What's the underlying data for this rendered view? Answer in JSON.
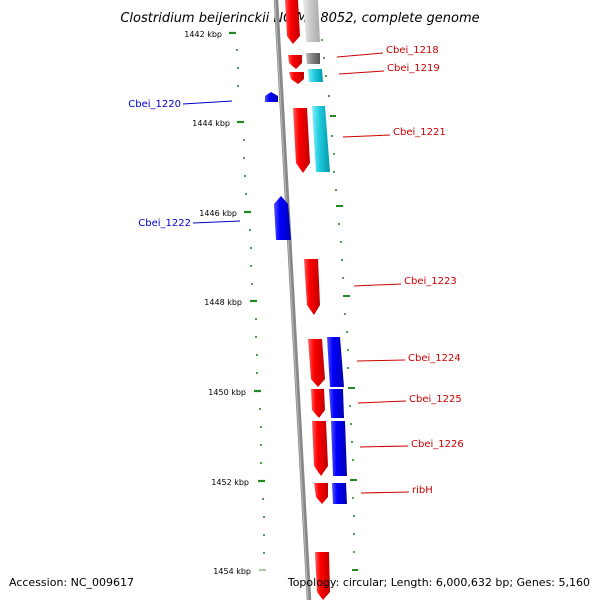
{
  "title": "Clostridium beijerinckii NCIMB 8052, complete genome",
  "accession": "Accession: NC_009617",
  "topology": "Topology: circular; Length: 6,000,632 bp; Genes: 5,160",
  "scale_ticks": [
    "1442 kbp",
    "1444 kbp",
    "1446 kbp",
    "1448 kbp",
    "1450 kbp",
    "1452 kbp",
    "1454 kbp"
  ],
  "genes": [
    {
      "label": "Cbei_1218",
      "color": "#cc0000",
      "side": "right"
    },
    {
      "label": "Cbei_1219",
      "color": "#cc0000",
      "side": "right"
    },
    {
      "label": "Cbei_1220",
      "color": "#0000cc",
      "side": "left"
    },
    {
      "label": "Cbei_1221",
      "color": "#cc0000",
      "side": "right"
    },
    {
      "label": "Cbei_1222",
      "color": "#0000cc",
      "side": "left"
    },
    {
      "label": "Cbei_1223",
      "color": "#cc0000",
      "side": "right"
    },
    {
      "label": "Cbei_1224",
      "color": "#cc0000",
      "side": "right"
    },
    {
      "label": "Cbei_1225",
      "color": "#cc0000",
      "side": "right"
    },
    {
      "label": "Cbei_1226",
      "color": "#cc0000",
      "side": "right"
    },
    {
      "label": "ribH",
      "color": "#cc0000",
      "side": "right"
    }
  ],
  "colors": {
    "forward_cds": "#ff0000",
    "reverse_cds": "#0000ff",
    "forward_feature": "#00ccdd",
    "gray_feature": "#888888",
    "backbone": "#888888",
    "scale": "#228822"
  }
}
